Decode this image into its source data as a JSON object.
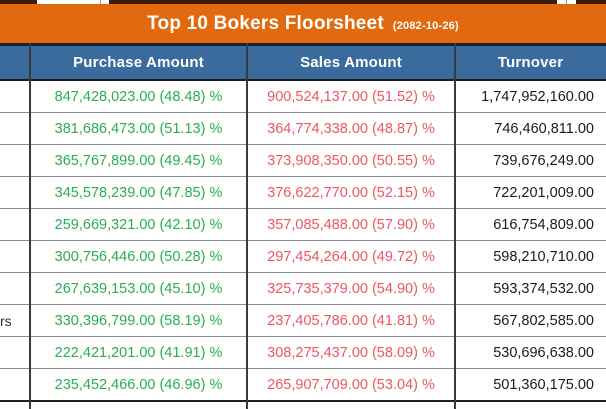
{
  "title_bar": {
    "title": "Top 10 Bokers Floorsheet",
    "date": "(2082-10-26)",
    "bg_color": "#E2690D",
    "text_color": "#FFFFFF"
  },
  "table": {
    "header": {
      "broker": "",
      "purchase": "Purchase Amount",
      "sales": "Sales Amount",
      "turnover": "Turnover",
      "bg_color": "#3A6B9C",
      "text_color": "#FFFFFF"
    },
    "colors": {
      "purchase_text": "#2AAD52",
      "sales_text": "#ED5566",
      "turnover_text": "#1B1B1B",
      "row_divider": "#8C8C8C",
      "column_divider": "#3A3A3A"
    },
    "rows": [
      {
        "broker": "",
        "purchase": "847,428,023.00 (48.48) %",
        "sales": "900,524,137.00 (51.52) %",
        "turnover": "1,747,952,160.00"
      },
      {
        "broker": "",
        "purchase": "381,686,473.00 (51.13) %",
        "sales": "364,774,338.00 (48.87) %",
        "turnover": "746,460,811.00"
      },
      {
        "broker": "",
        "purchase": "365,767,899.00 (49.45) %",
        "sales": "373,908,350.00 (50.55) %",
        "turnover": "739,676,249.00"
      },
      {
        "broker": "",
        "purchase": "345,578,239.00 (47.85) %",
        "sales": "376,622,770.00 (52.15) %",
        "turnover": "722,201,009.00"
      },
      {
        "broker": "",
        "purchase": "259,669,321.00 (42.10) %",
        "sales": "357,085,488.00 (57.90) %",
        "turnover": "616,754,809.00"
      },
      {
        "broker": "",
        "purchase": "300,756,446.00 (50.28) %",
        "sales": "297,454,264.00 (49.72) %",
        "turnover": "598,210,710.00"
      },
      {
        "broker": "",
        "purchase": "267,639,153.00 (45.10) %",
        "sales": "325,735,379.00 (54.90) %",
        "turnover": "593,374,532.00"
      },
      {
        "broker": "rs",
        "purchase": "330,396,799.00 (58.19) %",
        "sales": "237,405,786.00 (41.81) %",
        "turnover": "567,802,585.00"
      },
      {
        "broker": "",
        "purchase": "222,421,201.00 (41.91) %",
        "sales": "308,275,437.00 (58.09) %",
        "turnover": "530,696,638.00"
      },
      {
        "broker": "",
        "purchase": "235,452,466.00 (46.96) %",
        "sales": "265,907,709.00 (53.04) %",
        "turnover": "501,360,175.00"
      }
    ]
  }
}
